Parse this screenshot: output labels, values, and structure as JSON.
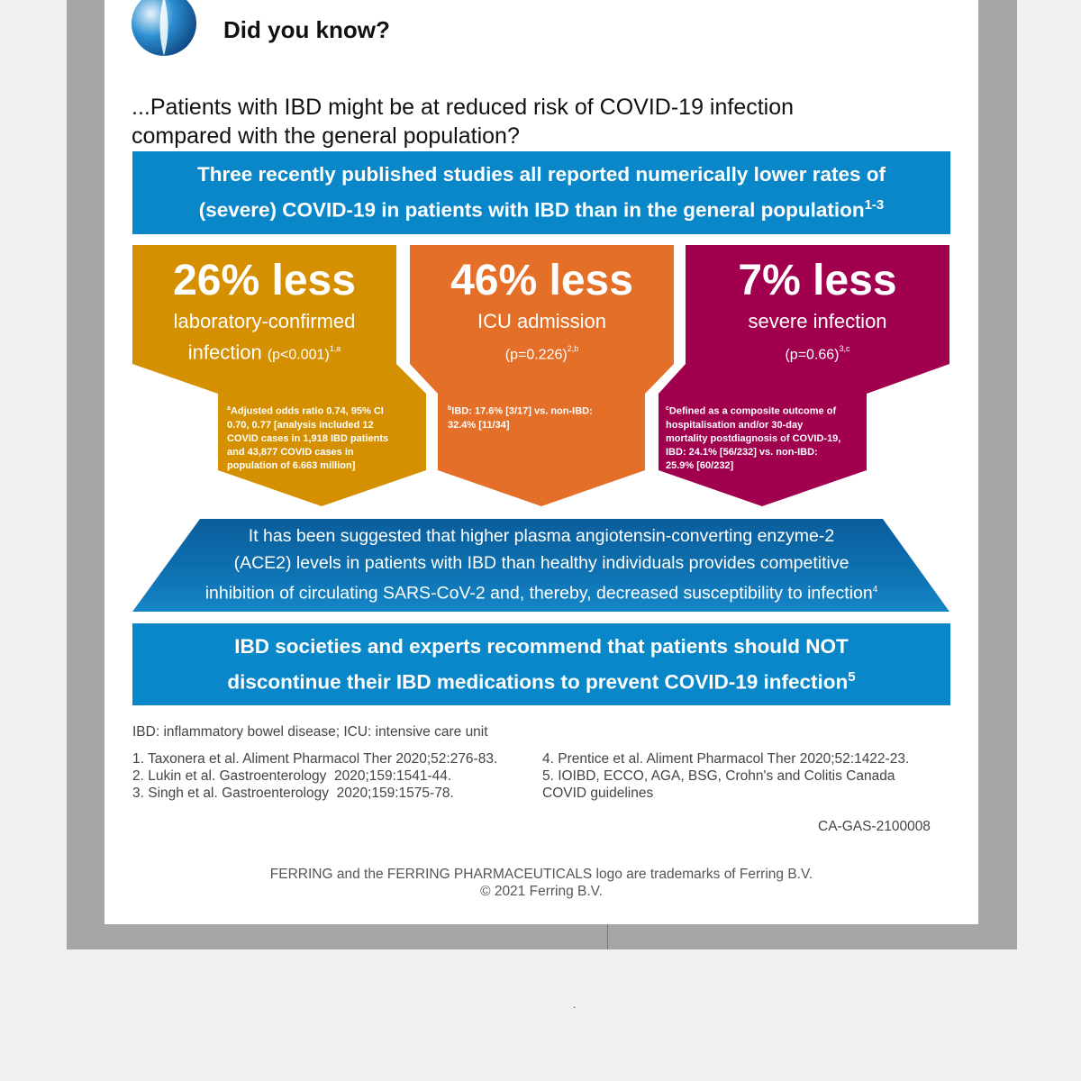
{
  "colors": {
    "blue": "#0a87c9",
    "gold": "#d49000",
    "orange": "#e36f28",
    "magenta": "#a0004d",
    "dark_blue": "#1368a3"
  },
  "header": {
    "logo_icon": "ferring-logo-icon",
    "title": "Did you know?"
  },
  "lead": {
    "line1": "...Patients with IBD might be at reduced risk of COVID-19 infection",
    "line2": "compared with the general population?"
  },
  "banner_top": {
    "line1": "Three recently published studies all reported numerically lower rates of",
    "line2": "(severe) COVID-19 in patients with IBD than in the general population",
    "sup": "1-3"
  },
  "stats": [
    {
      "big": "26% less",
      "desc1": "laboratory-confirmed",
      "desc2": "infection",
      "p": "(p<0.001)",
      "p_sup": "1,a",
      "note_sup": "a",
      "note": [
        "Adjusted odds ratio 0.74, 95% CI",
        "0.70, 0.77 [analysis included 12",
        "COVID cases in 1,918 IBD patients",
        "and 43,877 COVID cases in",
        "population of 6.663 million]"
      ]
    },
    {
      "big": "46% less",
      "desc1": "ICU admission",
      "p": "(p=0.226)",
      "p_sup": "2,b",
      "note_sup": "b",
      "note": [
        "IBD: 17.6% [3/17] vs. non-IBD:",
        "32.4% [11/34]"
      ]
    },
    {
      "big": "7% less",
      "desc1": "severe infection",
      "p": "(p=0.66)",
      "p_sup": "3,c",
      "note_sup": "c",
      "note": [
        "Defined as a composite outcome of",
        "hospitalisation and/or 30-day",
        "mortality postdiagnosis of COVID-19,",
        "IBD: 24.1% [56/232] vs. non-IBD:",
        "25.9% [60/232]"
      ]
    }
  ],
  "ace": {
    "line1": "It has been suggested that higher plasma angiotensin-converting enzyme-2",
    "line2": "(ACE2) levels in patients with IBD than healthy individuals provides competitive",
    "line3": "inhibition of circulating SARS-CoV-2 and, thereby, decreased susceptibility to infection",
    "sup": "4"
  },
  "banner_bottom": {
    "line1": "IBD societies and experts recommend that patients should NOT",
    "line2": "discontinue their IBD medications to prevent COVID-19 infection",
    "sup": "5"
  },
  "abbreviations": "IBD: inflammatory bowel disease; ICU: intensive care unit",
  "references_left": [
    "1. Taxonera et al. Aliment Pharmacol Ther 2020;52:276-83.",
    "2. Lukin et al. Gastroenterology  2020;159:1541-44.",
    "3. Singh et al. Gastroenterology  2020;159:1575-78."
  ],
  "references_right": [
    "4. Prentice et al. Aliment Pharmacol Ther 2020;52:1422-23.",
    "5. IOIBD, ECCO, AGA, BSG, Crohn's and Colitis Canada",
    "COVID guidelines"
  ],
  "code": "CA-GAS-2100008",
  "footer": {
    "line1": "FERRING and the FERRING PHARMACEUTICALS logo are trademarks of Ferring B.V.",
    "line2": "© 2021 Ferring B.V."
  },
  "stray_mark": "."
}
